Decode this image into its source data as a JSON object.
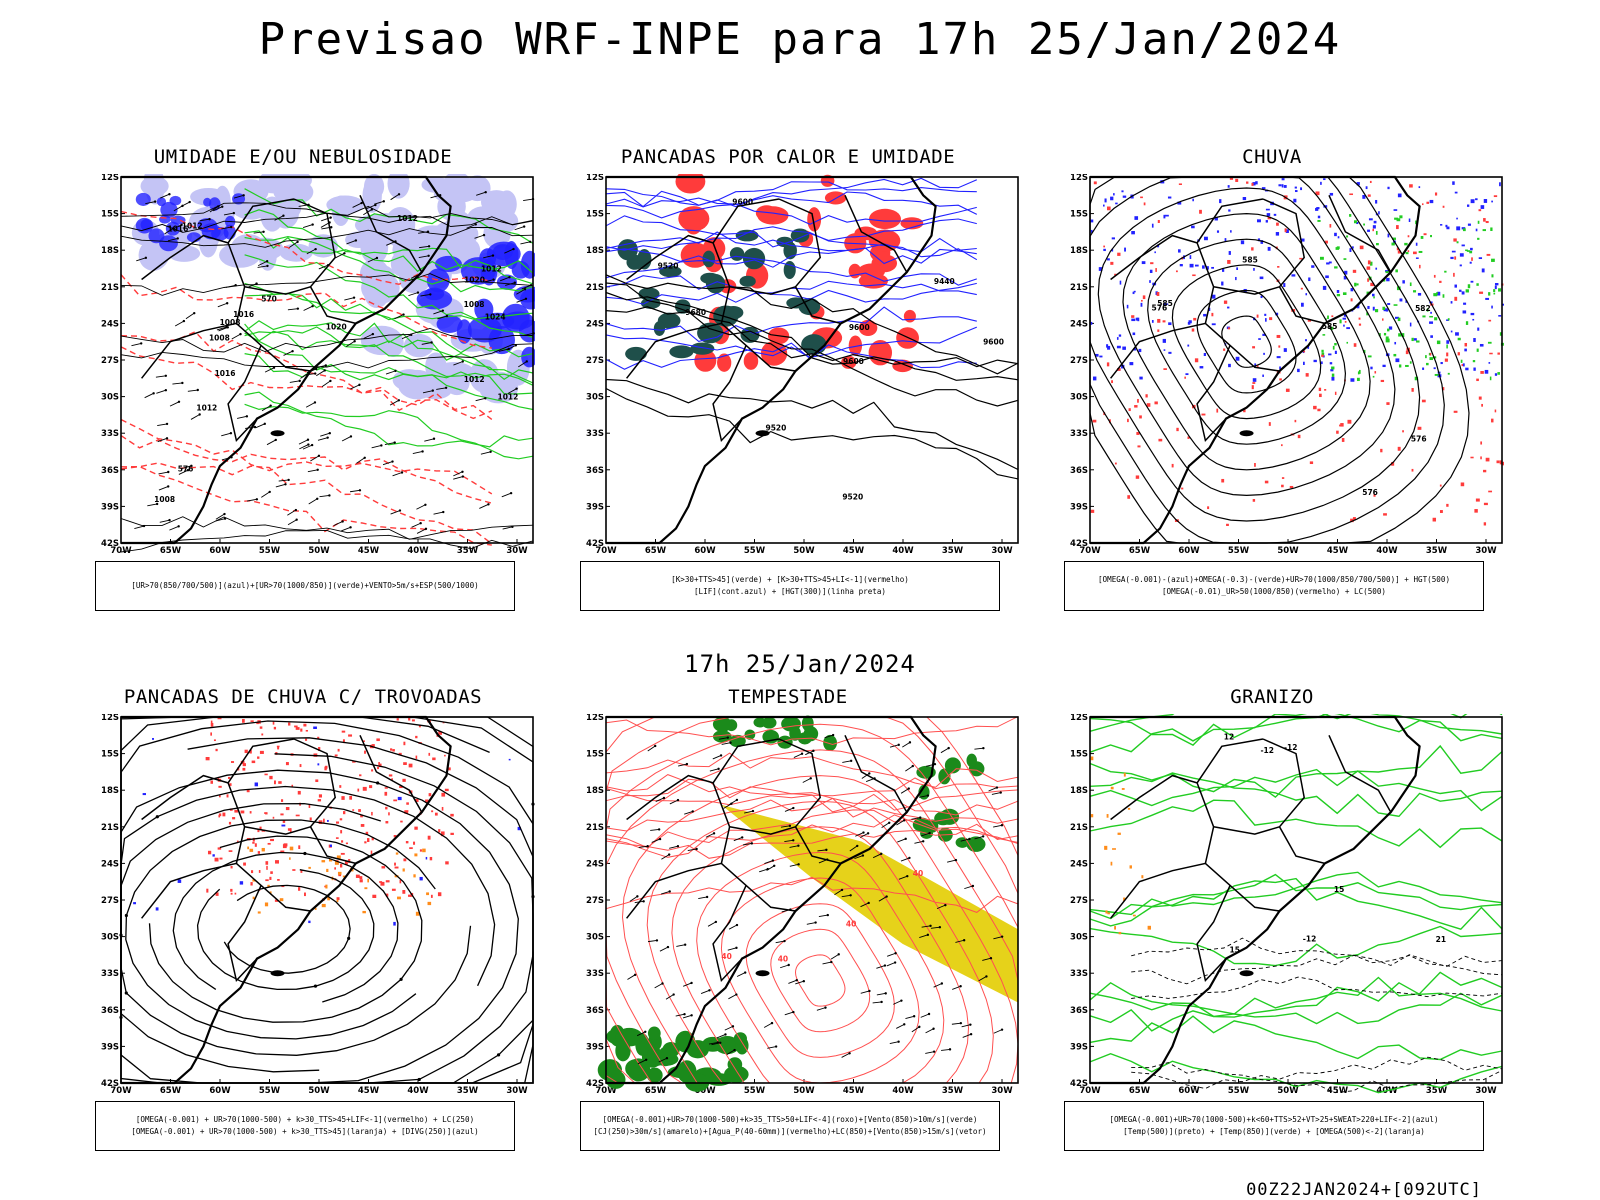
{
  "header": {
    "title": "Previsao WRF-INPE  para 17h 25/Jan/2024"
  },
  "mid_title": "17h 25/Jan/2024",
  "footer": "00Z22JAN2024+[092UTC]",
  "colors": {
    "red": "#ff3b3b",
    "green": "#22cc22",
    "blue": "#2222ff",
    "dark_green": "#1f4f4a",
    "lavender": "#c4c4f5",
    "yellow": "#e6d21a",
    "orange": "#ff8c1a"
  },
  "axes": {
    "lat_ticks": [
      "12S",
      "15S",
      "18S",
      "21S",
      "24S",
      "27S",
      "30S",
      "33S",
      "36S",
      "39S",
      "42S"
    ],
    "lon_ticks": [
      "70W",
      "65W",
      "60W",
      "55W",
      "50W",
      "45W",
      "40W",
      "35W",
      "30W"
    ]
  },
  "chart_data": [
    {
      "type": "map",
      "title": "UMIDADE E/OU NEBULOSIDADE",
      "legend": [
        "[UR>70(850/700/500)](azul)+[UR>70(1000/850)](verde)+VENTO>5m/s+ESP(500/1000)"
      ],
      "labels": [
        "1008",
        "1008",
        "1016",
        "1008",
        "1012",
        "1008",
        "1012",
        "1012",
        "1016",
        "1012",
        "1012",
        "1020",
        "1016",
        "1024",
        "1020",
        "1012",
        "576",
        "570"
      ]
    },
    {
      "type": "map",
      "title": "PANCADAS POR CALOR E UMIDADE",
      "legend": [
        "[K>30+TTS>45](verde) + [K>30+TTS>45+LI<-1](vermelho)",
        "[LIF](cont.azul) + [HGT(300)](linha preta)"
      ],
      "labels": [
        "9680",
        "9600",
        "9600",
        "9520",
        "9520",
        "9440",
        "9520",
        "9600",
        "9600"
      ]
    },
    {
      "type": "map",
      "title": "CHUVA",
      "legend": [
        "[OMEGA(-0.001)-(azul)+OMEGA(-0.3)-(verde)+UR>70(1000/850/700/500)] + HGT(500)",
        "[OMEGA(-0.01)_UR>50(1000/850)(vermelho) + LC(500)"
      ],
      "labels": [
        "582",
        "576",
        "585",
        "585",
        "576",
        "576",
        "585"
      ]
    },
    {
      "type": "map",
      "title": "PANCADAS DE CHUVA C/ TROVOADAS",
      "legend": [
        "[OMEGA(-0.001) + UR>70(1000-500) + k>30_TTS>45+LIF<-1](vermelho) + LC(250)",
        "[OMEGA(-0.001) + UR>70(1000-500) + k>30_TTS>45](laranja) + [DIVG(250)](azul)"
      ],
      "labels": []
    },
    {
      "type": "map",
      "title": "TEMPESTADE",
      "legend": [
        "[OMEGA(-0.001)+UR>70(1000-500)+k>35_TTS>50+LIF<-4](roxo)+[Vento(850)>10m/s](verde)",
        "[CJ(250)>30m/s](amarelo)+[Agua_P(40-60mm)](vermelho)+LC(850)+[Vento(850)>15m/s](vetor)"
      ],
      "labels": [
        "40",
        "40",
        "40",
        "40"
      ]
    },
    {
      "type": "map",
      "title": "GRANIZO",
      "legend": [
        "[OMEGA(-0.001)+UR>70(1000-500)+k<60+TTS>52+VT>25+SWEAT>220+LIF<-2](azul)",
        "[Temp(500)](preto) + [Temp(850)](verde) + [OMEGA(500)<-2](laranja)"
      ],
      "labels": [
        "-12",
        "-12",
        "-12",
        "12",
        "15",
        "21",
        "15"
      ]
    }
  ]
}
